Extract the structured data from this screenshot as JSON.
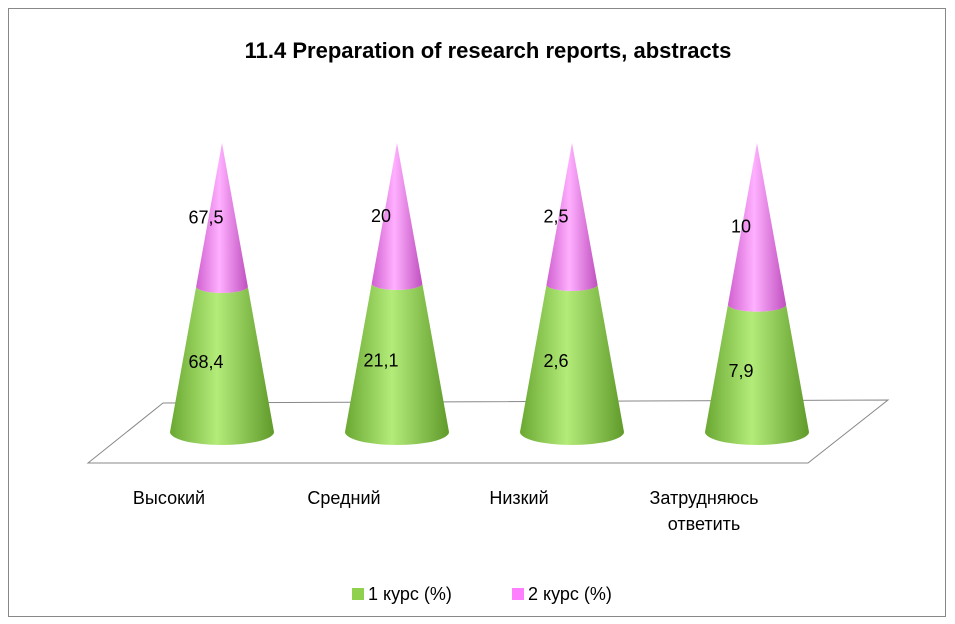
{
  "chart_data": {
    "type": "cone",
    "stacking": "percent",
    "title": "11.4 Preparation of research reports, abstracts",
    "categories": [
      "Высокий",
      "Средний",
      "Низкий",
      "Затрудняюсь ответить"
    ],
    "series": [
      {
        "name": "1 курс (%)",
        "color": "#8fd14f",
        "values": [
          68.4,
          21.1,
          2.6,
          7.9
        ],
        "value_labels": [
          "68,4",
          "21,1",
          "2,6",
          "7,9"
        ]
      },
      {
        "name": "2 курс (%)",
        "color": "#ff80ff",
        "values": [
          67.5,
          20,
          2.5,
          10
        ],
        "value_labels": [
          "67,5",
          "20",
          "2,5",
          "10"
        ]
      }
    ],
    "legend": "bottom"
  }
}
